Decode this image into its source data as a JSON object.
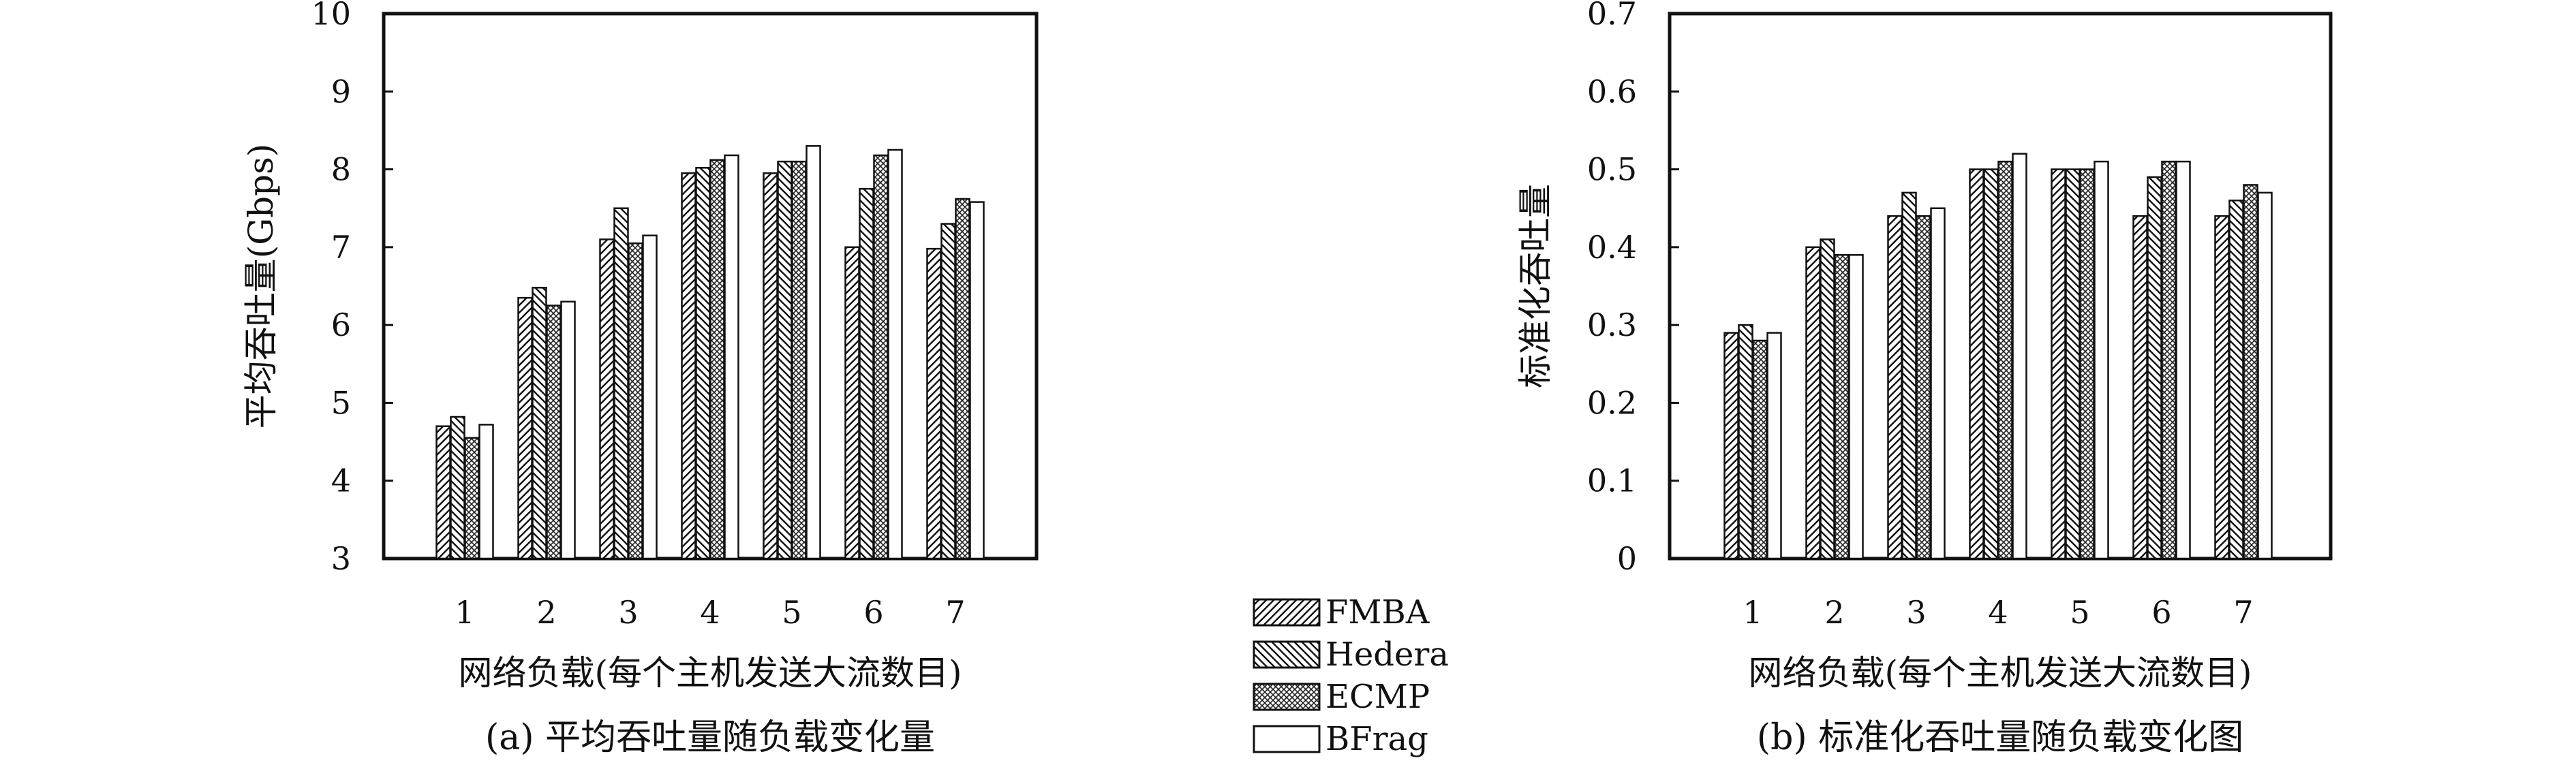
{
  "chart_data": [
    {
      "id": "a",
      "type": "bar",
      "caption": "(a) 平均吞吐量随负载变化量",
      "xlabel": "网络负载(每个主机发送大流数目)",
      "ylabel": "平均吞吐量(Gbps)",
      "ylim": [
        3,
        10
      ],
      "yticks": [
        "3",
        "4",
        "5",
        "6",
        "7",
        "8",
        "9",
        "10"
      ],
      "categories": [
        "1",
        "2",
        "3",
        "4",
        "5",
        "6",
        "7"
      ],
      "grid": false,
      "series": [
        {
          "name": "FMBA",
          "values": [
            4.7,
            6.35,
            7.1,
            7.95,
            7.95,
            7.0,
            6.98
          ]
        },
        {
          "name": "Hedera",
          "values": [
            4.82,
            6.48,
            7.5,
            8.02,
            8.1,
            7.75,
            7.3
          ]
        },
        {
          "name": "ECMP",
          "values": [
            4.55,
            6.25,
            7.05,
            8.12,
            8.1,
            8.18,
            7.62
          ]
        },
        {
          "name": "BFrag",
          "values": [
            4.72,
            6.3,
            7.15,
            8.18,
            8.3,
            8.25,
            7.58
          ]
        }
      ]
    },
    {
      "id": "b",
      "type": "bar",
      "caption": "(b) 标准化吞吐量随负载变化图",
      "xlabel": "网络负载(每个主机发送大流数目)",
      "ylabel": "标准化吞吐量",
      "ylim": [
        0,
        0.7
      ],
      "yticks": [
        "0",
        "0.1",
        "0.2",
        "0.3",
        "0.4",
        "0.5",
        "0.6",
        "0.7"
      ],
      "categories": [
        "1",
        "2",
        "3",
        "4",
        "5",
        "6",
        "7"
      ],
      "grid": false,
      "series": [
        {
          "name": "FMBA",
          "values": [
            0.29,
            0.4,
            0.44,
            0.5,
            0.5,
            0.44,
            0.44
          ]
        },
        {
          "name": "Hedera",
          "values": [
            0.3,
            0.41,
            0.47,
            0.5,
            0.5,
            0.49,
            0.46
          ]
        },
        {
          "name": "ECMP",
          "values": [
            0.28,
            0.39,
            0.44,
            0.51,
            0.5,
            0.51,
            0.48
          ]
        },
        {
          "name": "BFrag",
          "values": [
            0.29,
            0.39,
            0.45,
            0.52,
            0.51,
            0.51,
            0.47
          ]
        }
      ]
    }
  ],
  "legend": {
    "placement": "bottom-center",
    "items": [
      {
        "name": "FMBA",
        "pattern": "diag-forward"
      },
      {
        "name": "Hedera",
        "pattern": "diag-backward"
      },
      {
        "name": "ECMP",
        "pattern": "crosshatch"
      },
      {
        "name": "BFrag",
        "pattern": "blank"
      }
    ]
  }
}
